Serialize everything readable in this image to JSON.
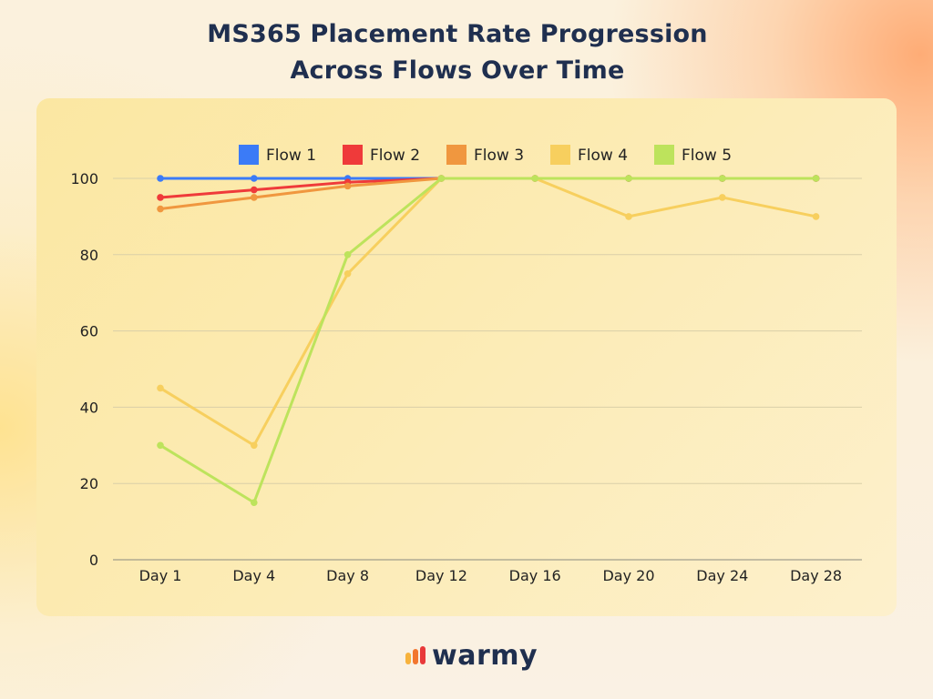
{
  "title": {
    "line1": "MS365 Placement Rate Progression",
    "line2": "Across Flows Over Time"
  },
  "brand": {
    "name": "warmy"
  },
  "chart_data": {
    "type": "line",
    "title": "MS365 Placement Rate Progression Across Flows Over Time",
    "xlabel": "",
    "ylabel": "",
    "categories": [
      "Day 1",
      "Day 4",
      "Day 8",
      "Day 12",
      "Day 16",
      "Day 20",
      "Day 24",
      "Day 28"
    ],
    "ylim": [
      0,
      100
    ],
    "yticks": [
      0,
      20,
      40,
      60,
      80,
      100
    ],
    "grid": true,
    "legend_position": "top",
    "series": [
      {
        "name": "Flow 1",
        "color": "#3b7bf7",
        "values": [
          100,
          100,
          100,
          100,
          100,
          100,
          100,
          100
        ]
      },
      {
        "name": "Flow 2",
        "color": "#ef3a3a",
        "values": [
          95,
          97,
          99,
          100,
          100,
          100,
          100,
          100
        ]
      },
      {
        "name": "Flow 3",
        "color": "#f0973f",
        "values": [
          92,
          95,
          98,
          100,
          100,
          100,
          100,
          100
        ]
      },
      {
        "name": "Flow 4",
        "color": "#f7cf5e",
        "values": [
          45,
          30,
          75,
          100,
          100,
          90,
          95,
          90
        ]
      },
      {
        "name": "Flow 5",
        "color": "#bde35c",
        "values": [
          30,
          15,
          80,
          100,
          100,
          100,
          100,
          100
        ]
      }
    ]
  }
}
